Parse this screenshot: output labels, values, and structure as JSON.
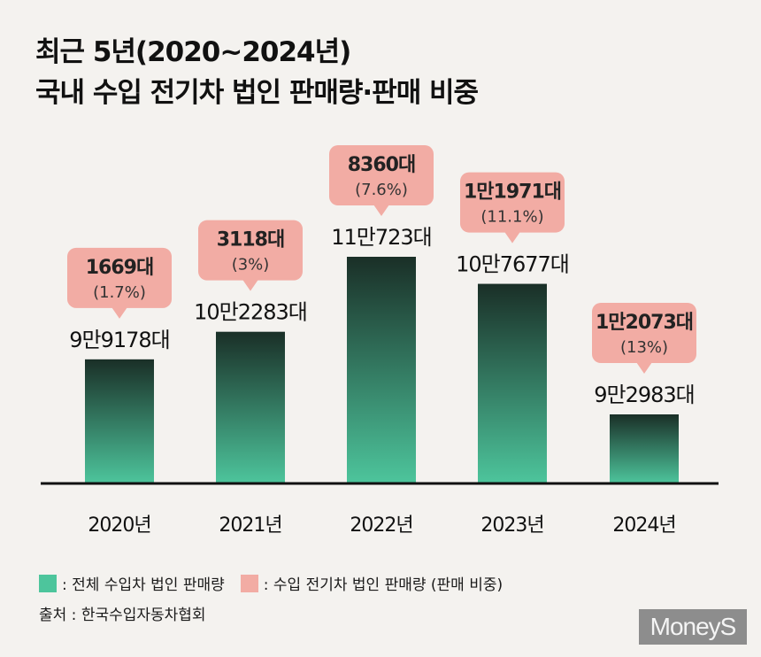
{
  "title": {
    "line1": "최근 5년(2020~2024년)",
    "line2": "국내 수입 전기차 법인 판매량·판매 비중"
  },
  "colors": {
    "bar_top": "#1a2f27",
    "bar_bottom": "#4dc59c",
    "bubble": "#f2aca4",
    "axis": "#111111",
    "background": "#f4f2ef"
  },
  "chart_data": {
    "type": "bar",
    "title": "최근 5년(2020~2024년) 국내 수입 전기차 법인 판매량·판매 비중",
    "categories": [
      "2020년",
      "2021년",
      "2022년",
      "2023년",
      "2024년"
    ],
    "series": [
      {
        "name": "전체 수입차 법인 판매량",
        "values": [
          99178,
          102283,
          110723,
          107677,
          92983
        ],
        "labels": [
          "9만9178대",
          "10만2283대",
          "11만723대",
          "10만7677대",
          "9만2983대"
        ]
      },
      {
        "name": "수입 전기차 법인 판매량 (판매 비중)",
        "values": [
          1669,
          3118,
          8360,
          11971,
          12073
        ],
        "labels": [
          "1669대",
          "3118대",
          "8360대",
          "1만1971대",
          "1만2073대"
        ],
        "shares": [
          "(1.7%)",
          "(3%)",
          "(7.6%)",
          "(11.1%)",
          "(13%)"
        ]
      }
    ],
    "ylim": [
      85000,
      115000
    ],
    "xlabel": "",
    "ylabel": ""
  },
  "legend": {
    "total_label": ": 전체 수입차 법인 판매량",
    "ev_label": ": 수입 전기차 법인 판매량 (판매 비중)"
  },
  "source": "출처 : 한국수입자동차협회",
  "logo": "MoneyS"
}
